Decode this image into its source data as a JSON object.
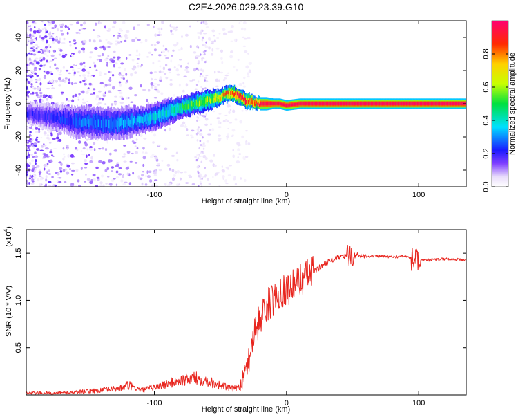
{
  "title": "C2E4.2026.029.23.39.G10",
  "colors": {
    "snr_line": "#e8261f",
    "spectrogram_background": "#ffffff",
    "colorbar_stops": [
      "#ffffff",
      "#e9ddfb",
      "#8040ff",
      "#1a1aff",
      "#00e0ff",
      "#00e040",
      "#c8ff00",
      "#ffd000",
      "#ff2a00",
      "#ff0070"
    ]
  },
  "chart_data": [
    {
      "type": "heatmap",
      "xlabel": "Height of straight line (km)",
      "ylabel": "Frequency (Hz)",
      "xlim": [
        -197,
        136
      ],
      "ylim": [
        -50,
        50
      ],
      "xticks": [
        -100,
        0,
        100
      ],
      "yticks": [
        -40,
        -20,
        0,
        20,
        40
      ],
      "colorbar": {
        "label": "Normalized spectral amplitude",
        "range": [
          0,
          1
        ],
        "ticks": [
          "0.0",
          "0.2",
          "0.4",
          "0.6",
          "0.8"
        ]
      },
      "ridge": {
        "description_units": "peak frequency (Hz) vs height (km)",
        "x": [
          -195,
          -180,
          -170,
          -160,
          -150,
          -140,
          -130,
          -120,
          -110,
          -100,
          -90,
          -80,
          -70,
          -60,
          -50,
          -45,
          -40,
          -35,
          -30,
          -25,
          -20,
          -15,
          -10,
          -5,
          0,
          10,
          20,
          40,
          60,
          80,
          100,
          120,
          136
        ],
        "y": [
          -6,
          -8,
          -9,
          -11,
          -11,
          -12,
          -12,
          -11,
          -10,
          -8,
          -5,
          -2,
          0,
          2,
          4,
          6,
          6,
          4,
          2,
          1,
          0,
          0,
          0,
          0,
          -1,
          0,
          0,
          0,
          0,
          0,
          0,
          0,
          0
        ],
        "width": [
          4,
          5,
          5,
          6,
          6,
          6,
          6,
          6,
          5,
          5,
          5,
          4,
          4,
          4,
          3,
          3,
          3,
          3,
          3,
          2.5,
          2.5,
          2.5,
          2,
          2,
          2,
          2,
          2,
          2,
          2,
          2,
          2,
          2,
          2
        ],
        "amplitude": [
          0.2,
          0.22,
          0.25,
          0.28,
          0.3,
          0.3,
          0.32,
          0.33,
          0.35,
          0.38,
          0.42,
          0.5,
          0.55,
          0.62,
          0.72,
          0.85,
          0.9,
          0.92,
          0.95,
          0.95,
          0.96,
          0.96,
          0.96,
          0.96,
          0.97,
          0.97,
          0.98,
          0.98,
          0.98,
          0.98,
          0.98,
          0.98,
          0.98
        ]
      }
    },
    {
      "type": "line",
      "xlabel": "Height of straight line (km)",
      "ylabel": "SNR (10 * V/V)",
      "y_multiplier": "(x10",
      "y_multiplier_exp": "4",
      "y_multiplier_close": ")",
      "xlim": [
        -197,
        136
      ],
      "ylim": [
        0,
        1.75
      ],
      "xticks": [
        -100,
        0,
        100
      ],
      "yticks": [
        "0.5",
        "1.0",
        "1.5"
      ],
      "series": [
        {
          "x": [
            -197,
            -170,
            -140,
            -125,
            -120,
            -110,
            -100,
            -90,
            -80,
            -70,
            -60,
            -50,
            -40,
            -35,
            -30,
            -27,
            -25,
            -20,
            -15,
            -10,
            -5,
            0,
            5,
            10,
            20,
            30,
            40,
            45,
            50,
            60,
            70,
            80,
            90,
            95,
            100,
            110,
            120,
            136
          ],
          "y": [
            0.02,
            0.02,
            0.05,
            0.07,
            0.1,
            0.05,
            0.08,
            0.12,
            0.15,
            0.18,
            0.15,
            0.1,
            0.06,
            0.1,
            0.3,
            0.5,
            0.65,
            0.8,
            0.95,
            1.0,
            1.1,
            1.12,
            1.15,
            1.22,
            1.3,
            1.4,
            1.46,
            1.47,
            1.48,
            1.47,
            1.47,
            1.46,
            1.47,
            1.44,
            1.42,
            1.43,
            1.44,
            1.43
          ]
        }
      ]
    }
  ]
}
